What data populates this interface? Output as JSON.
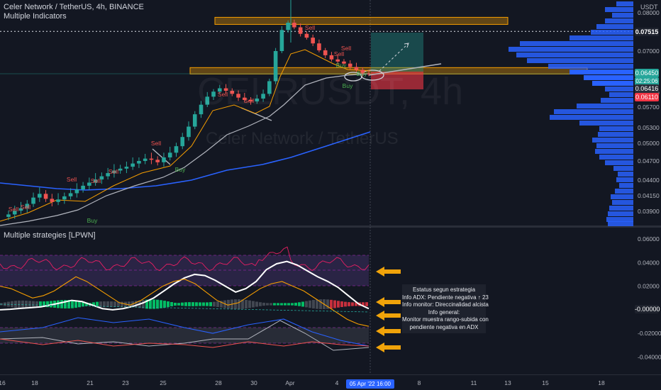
{
  "header": {
    "symbol_line": "Celer Network / TetherUS, 4h, BINANCE",
    "indicators_label": "Multiple Indicators",
    "pane2_label": "Multiple strategies [LPWN]"
  },
  "watermark": {
    "ticker": "CELRUSDT, 4h",
    "name": "Celer Network / TetherUS"
  },
  "price_axis": {
    "currency": "USDT",
    "ticks": [
      "0.08000",
      "0.07000",
      "0.06000",
      "0.05700",
      "0.05300",
      "0.05000",
      "0.04700",
      "0.04400",
      "0.04150",
      "0.03900"
    ],
    "tag_high": "0.07515",
    "tag_last": "0.06450",
    "tag_countdown": "02:25:06",
    "tag_entry": "0.06416",
    "tag_stop": "0.06110"
  },
  "osc_axis": {
    "ticks": [
      "0.06000",
      "0.04000",
      "0.02000",
      "0.00000",
      "-0.02000",
      "-0.04000"
    ],
    "tag_zero": "-0.00000",
    "tag_neg": "-0.02000"
  },
  "time_axis": {
    "ticks": [
      "16",
      "18",
      "21",
      "23",
      "25",
      "28",
      "30",
      "Apr",
      "4",
      "8",
      "11",
      "13",
      "15",
      "18"
    ],
    "crosshair_label": "05 Apr '22",
    "crosshair_time": "16:00"
  },
  "signals": {
    "sell": "Sell",
    "buy": "Buy"
  },
  "callout": {
    "line1": "Estatus segun estrategia",
    "line2": "Info ADX: Pendiente negativa ↑ 23",
    "line3": "Info monitor: Direccinalidad alcista",
    "line4": "Info general:",
    "line5": "Monitor muestra rango-subida con",
    "line6": "pendiente negativa en ADX"
  },
  "colors": {
    "background": "#131722",
    "up": "#26a69a",
    "down": "#ef5350",
    "zone": "#f59d00",
    "profile": "#2962ff",
    "arrow": "#f0a30a"
  },
  "chart_data": [
    {
      "type": "candlestick",
      "title": "Celer Network / TetherUS, 4h, BINANCE",
      "ylabel": "USDT",
      "y_ticks": [
        0.08,
        0.07,
        0.06,
        0.057,
        0.053,
        0.05,
        0.047,
        0.044,
        0.0415,
        0.039
      ],
      "x_ticks": [
        "16",
        "18",
        "21",
        "23",
        "25",
        "28",
        "30",
        "Apr",
        "4",
        "8",
        "11",
        "13",
        "15",
        "18"
      ],
      "close_series": [
        0.0385,
        0.0391,
        0.0395,
        0.0402,
        0.0412,
        0.0418,
        0.041,
        0.0405,
        0.0409,
        0.0414,
        0.0419,
        0.0425,
        0.0431,
        0.0436,
        0.0441,
        0.0446,
        0.0451,
        0.0455,
        0.0458,
        0.0461,
        0.0466,
        0.047,
        0.0474,
        0.0472,
        0.0468,
        0.0476,
        0.0484,
        0.0495,
        0.0512,
        0.0532,
        0.0556,
        0.0575,
        0.0592,
        0.0603,
        0.0611,
        0.0605,
        0.0598,
        0.059,
        0.0585,
        0.0582,
        0.0588,
        0.0598,
        0.0628,
        0.07,
        0.0755,
        0.0774,
        0.0762,
        0.0745,
        0.0735,
        0.072,
        0.0702,
        0.069,
        0.068,
        0.0675,
        0.067,
        0.0662,
        0.0655,
        0.0646,
        0.0645
      ],
      "last_price": 0.0645,
      "levels": {
        "high_marker": 0.07515,
        "entry": 0.06416,
        "stop": 0.0611
      },
      "annotations": [
        "Sell",
        "Buy"
      ]
    },
    {
      "type": "line",
      "title": "Multiple strategies [LPWN]",
      "y_ticks": [
        0.06,
        0.04,
        0.02,
        0.0,
        -0.02,
        -0.04
      ],
      "series": [
        {
          "values": [
            0.0,
            0.0005,
            0.0012,
            0.0018,
            0.0025,
            0.0042,
            0.006,
            0.008,
            0.007,
            0.004,
            0.001,
            0.0,
            0.001,
            0.003,
            0.006,
            0.01,
            0.016,
            0.022,
            0.027,
            0.03,
            0.029,
            0.025,
            0.02,
            0.015,
            0.018,
            0.024,
            0.034,
            0.039,
            0.041,
            0.038,
            0.033,
            0.028,
            0.024,
            0.019,
            0.012,
            0.005,
            0.001
          ]
        },
        {
          "values": [
            0.02,
            0.018,
            0.014,
            0.01,
            0.012,
            0.016,
            0.022,
            0.028,
            0.024,
            0.018,
            0.012,
            0.006,
            0.004,
            0.008,
            0.014,
            0.02,
            0.024,
            0.026,
            0.022,
            0.015,
            0.008,
            0.004,
            0.006,
            0.012,
            0.018,
            0.022,
            0.024,
            0.02,
            0.016,
            0.01,
            0.004,
            -0.002,
            -0.008,
            -0.012,
            -0.014
          ]
        }
      ]
    }
  ]
}
